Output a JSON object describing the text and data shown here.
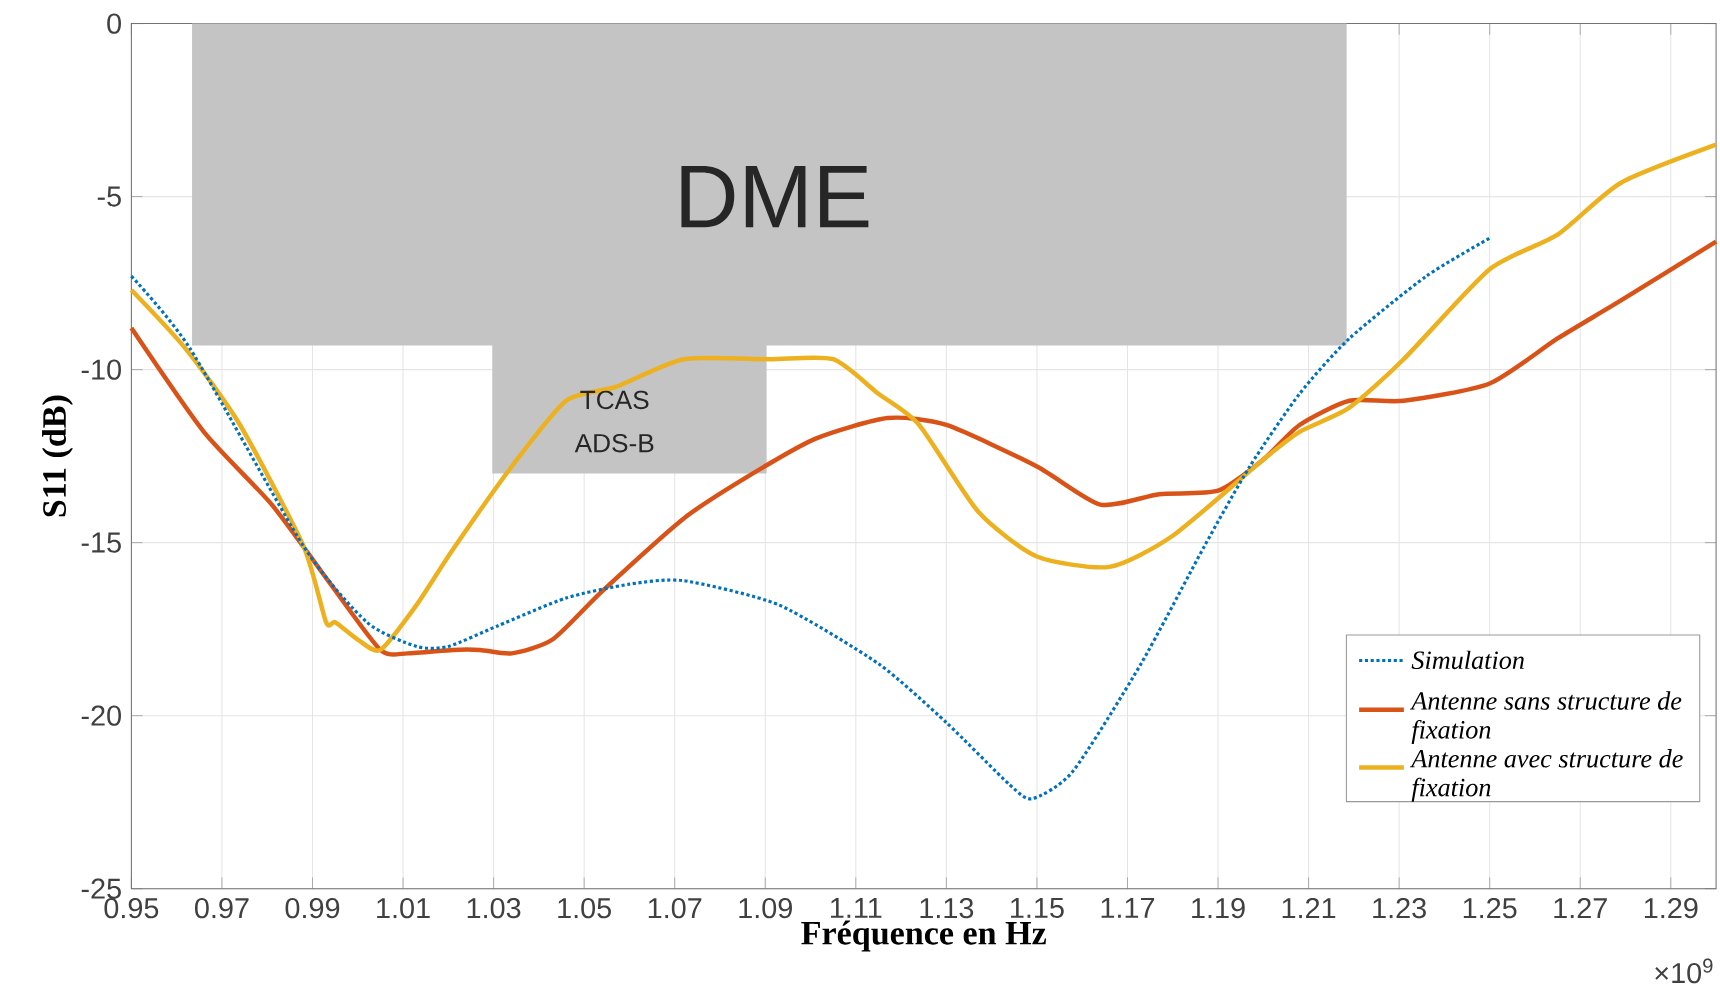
{
  "chart_data": {
    "type": "line",
    "xlabel": "Fréquence en Hz",
    "ylabel": "S11 (dB)",
    "xlim": [
      0.95,
      1.3
    ],
    "ylim": [
      -25,
      0
    ],
    "xticks": [
      0.95,
      0.97,
      0.99,
      1.01,
      1.03,
      1.05,
      1.07,
      1.09,
      1.11,
      1.13,
      1.15,
      1.17,
      1.19,
      1.21,
      1.23,
      1.25,
      1.27,
      1.29
    ],
    "yticks": [
      -25,
      -20,
      -15,
      -10,
      -5,
      0
    ],
    "grid": true,
    "legend": "bottom right",
    "annotations": [
      "DME",
      "TCAS",
      "ADS-B",
      "×10$^{9}$"
    ],
    "series": [
      {
        "type": "area",
        "color": "#c4c4c4",
        "x": [
          0.9634,
          1.0297,
          1.0297,
          1.0903,
          1.0903,
          1.2184
        ],
        "values": [
          -9.3,
          -9.3,
          -13,
          -13,
          -9.3,
          -9.3
        ]
      },
      {
        "name": "Simulation",
        "color": "#0072bd",
        "line_style": "dotted",
        "x": [
          0.95,
          0.963,
          0.988,
          1.002,
          1.013,
          1.02,
          1.031,
          1.046,
          1.06,
          1.072,
          1.093,
          1.115,
          1.13,
          1.144,
          1.149,
          1.158,
          1.173,
          1.187,
          1.197,
          1.208,
          1.219,
          1.236,
          1.25
        ],
        "values": [
          -7.3,
          -9.4,
          -15.1,
          -17.3,
          -18.0,
          -18.0,
          -17.4,
          -16.6,
          -16.2,
          -16.1,
          -16.8,
          -18.5,
          -20.2,
          -22.0,
          -22.4,
          -21.6,
          -18.5,
          -15.1,
          -12.8,
          -10.7,
          -9.1,
          -7.3,
          -6.2
        ]
      },
      {
        "name": "Antenne sans structure de fixation",
        "color": "#d95319",
        "line_style": "solid",
        "x": [
          0.95,
          0.966,
          0.981,
          0.994,
          1.005,
          1.011,
          1.021,
          1.027,
          1.034,
          1.043,
          1.054,
          1.072,
          1.086,
          1.101,
          1.117,
          1.13,
          1.15,
          1.164,
          1.177,
          1.19,
          1.2,
          1.208,
          1.219,
          1.231,
          1.25,
          1.265,
          1.279,
          1.3
        ],
        "values": [
          -8.8,
          -11.8,
          -13.9,
          -16.2,
          -18.1,
          -18.2,
          -18.1,
          -18.1,
          -18.2,
          -17.8,
          -16.4,
          -14.3,
          -13.1,
          -12.0,
          -11.4,
          -11.6,
          -12.8,
          -13.9,
          -13.6,
          -13.5,
          -12.6,
          -11.6,
          -10.9,
          -10.9,
          -10.4,
          -9.1,
          -8.0,
          -6.3
        ]
      },
      {
        "name": "Antenne avec structure de fixation",
        "color": "#edb120",
        "line_style": "solid",
        "x": [
          0.95,
          0.962,
          0.974,
          0.988,
          0.993,
          0.995,
          1.0,
          1.005,
          1.013,
          1.021,
          1.034,
          1.046,
          1.057,
          1.072,
          1.091,
          1.105,
          1.115,
          1.124,
          1.137,
          1.15,
          1.166,
          1.18,
          1.2,
          1.208,
          1.219,
          1.231,
          1.25,
          1.265,
          1.279,
          1.3
        ],
        "values": [
          -7.7,
          -9.4,
          -11.6,
          -15.1,
          -17.3,
          -17.3,
          -17.8,
          -18.1,
          -16.8,
          -15.2,
          -12.8,
          -10.9,
          -10.5,
          -9.7,
          -9.7,
          -9.7,
          -10.7,
          -11.6,
          -14.1,
          -15.4,
          -15.7,
          -14.8,
          -12.6,
          -11.8,
          -11.1,
          -9.7,
          -7.1,
          -6.1,
          -4.6,
          -3.5
        ]
      }
    ]
  }
}
